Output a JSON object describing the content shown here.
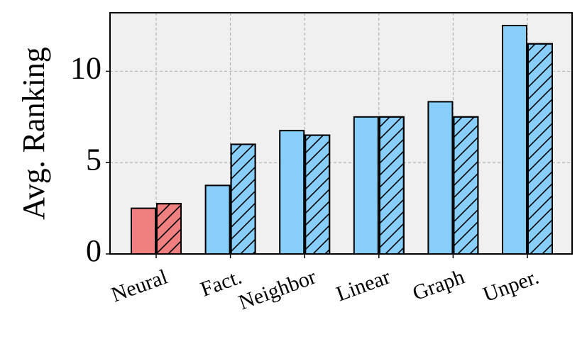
{
  "chart_data": {
    "type": "bar",
    "y_label": "Avg. Ranking",
    "categories": [
      "Neural",
      "Fact.",
      "Neighbor",
      "Linear",
      "Graph",
      "Unper."
    ],
    "series": [
      {
        "colors": [
          "#f08080",
          "#87cefa",
          "#87cefa",
          "#87cefa",
          "#87cefa",
          "#87cefa"
        ],
        "hatch": false,
        "values": [
          2.5,
          3.75,
          6.75,
          7.5,
          8.33,
          12.5
        ]
      },
      {
        "colors": [
          "#f08080",
          "#87cefa",
          "#87cefa",
          "#87cefa",
          "#87cefa",
          "#87cefa"
        ],
        "hatch": true,
        "values": [
          2.75,
          6.0,
          6.5,
          7.5,
          7.5,
          11.5
        ]
      }
    ],
    "ylim": [
      0,
      13.2
    ],
    "yticks": [
      0,
      5,
      10
    ],
    "grid": true
  }
}
